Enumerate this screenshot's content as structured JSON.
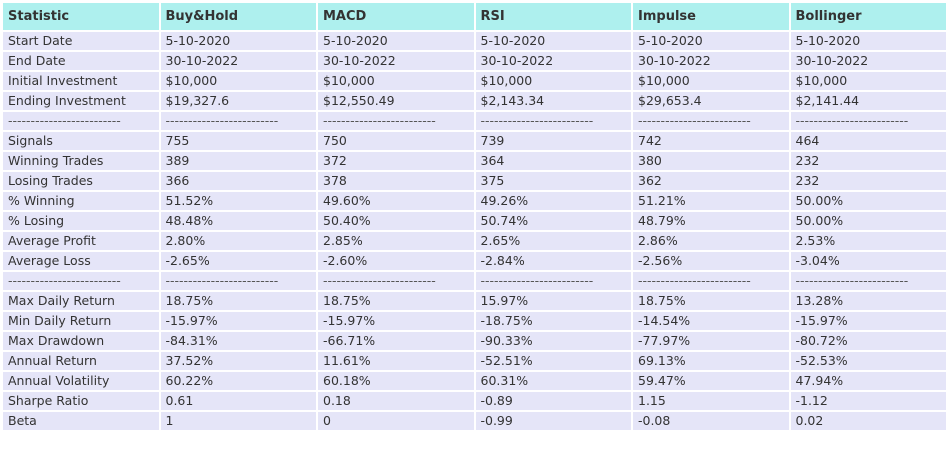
{
  "table": {
    "headers": [
      "Statistic",
      "Buy&Hold",
      "MACD",
      "RSI",
      "Impulse",
      "Bollinger"
    ],
    "rows": [
      [
        "Start Date",
        "5-10-2020",
        "5-10-2020",
        "5-10-2020",
        "5-10-2020",
        "5-10-2020"
      ],
      [
        "End Date",
        "30-10-2022",
        "30-10-2022",
        "30-10-2022",
        "30-10-2022",
        "30-10-2022"
      ],
      [
        "Initial Investment",
        "$10,000",
        "$10,000",
        "$10,000",
        "$10,000",
        "$10,000"
      ],
      [
        "Ending Investment",
        "$19,327.6",
        "$12,550.49",
        "$2,143.34",
        "$29,653.4",
        "$2,141.44"
      ],
      [
        "-------------------------",
        "-------------------------",
        "-------------------------",
        "-------------------------",
        "-------------------------",
        "-------------------------"
      ],
      [
        "Signals",
        "755",
        "750",
        "739",
        "742",
        "464"
      ],
      [
        "Winning Trades",
        "389",
        "372",
        "364",
        "380",
        "232"
      ],
      [
        "Losing Trades",
        "366",
        "378",
        "375",
        "362",
        "232"
      ],
      [
        "% Winning",
        "51.52%",
        "49.60%",
        "49.26%",
        "51.21%",
        "50.00%"
      ],
      [
        "% Losing",
        "48.48%",
        "50.40%",
        "50.74%",
        "48.79%",
        "50.00%"
      ],
      [
        "Average Profit",
        "2.80%",
        "2.85%",
        "2.65%",
        "2.86%",
        "2.53%"
      ],
      [
        "Average Loss",
        "-2.65%",
        "-2.60%",
        "-2.84%",
        "-2.56%",
        "-3.04%"
      ],
      [
        "-------------------------",
        "-------------------------",
        "-------------------------",
        "-------------------------",
        "-------------------------",
        "-------------------------"
      ],
      [
        "Max Daily Return",
        "18.75%",
        "18.75%",
        "15.97%",
        "18.75%",
        "13.28%"
      ],
      [
        "Min Daily Return",
        "-15.97%",
        "-15.97%",
        "-18.75%",
        "-14.54%",
        "-15.97%"
      ],
      [
        "Max Drawdown",
        "-84.31%",
        "-66.71%",
        "-90.33%",
        "-77.97%",
        "-80.72%"
      ],
      [
        "Annual Return",
        "37.52%",
        "11.61%",
        "-52.51%",
        "69.13%",
        "-52.53%"
      ],
      [
        "Annual Volatility",
        "60.22%",
        "60.18%",
        "60.31%",
        "59.47%",
        "47.94%"
      ],
      [
        "Sharpe Ratio",
        "0.61",
        "0.18",
        "-0.89",
        "1.15",
        "-1.12"
      ],
      [
        "Beta",
        "1",
        "0",
        "-0.99",
        "-0.08",
        "0.02"
      ]
    ]
  }
}
